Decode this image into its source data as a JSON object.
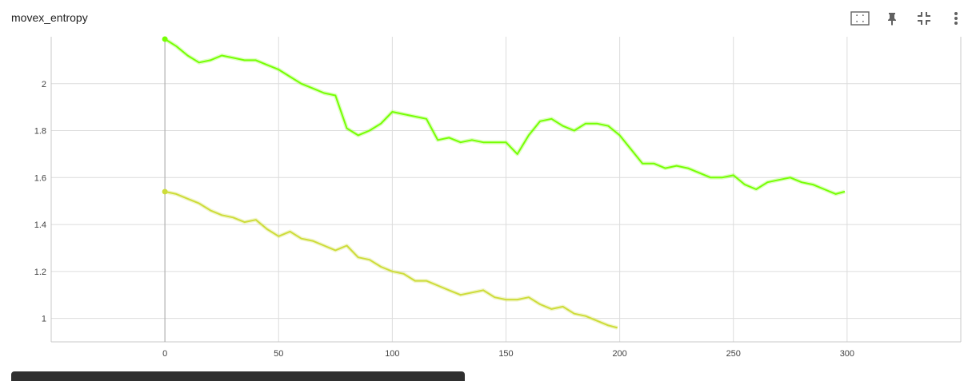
{
  "card": {
    "title": "movex_entropy"
  },
  "toolbar": {
    "icons": [
      "fit-domain-icon",
      "pin-icon",
      "collapse-icon",
      "more-vert-icon"
    ]
  },
  "colors": {
    "series_a": "#76ff03",
    "series_b": "#cddc39",
    "grid": "#dcdcdc",
    "axis_text": "#424242",
    "zero_line": "#b0b0b0"
  },
  "chart_data": {
    "type": "line",
    "title": "movex_entropy",
    "xlabel": "",
    "ylabel": "",
    "xlim": [
      -50,
      350
    ],
    "ylim": [
      0.9,
      2.2
    ],
    "x_ticks": [
      0,
      50,
      100,
      150,
      200,
      250,
      300
    ],
    "y_ticks": [
      1,
      1.2,
      1.4,
      1.6,
      1.8,
      2
    ],
    "x_tick_labels": [
      "0",
      "50",
      "100",
      "150",
      "200",
      "250",
      "300"
    ],
    "y_tick_labels": [
      "1",
      "1.2",
      "1.4",
      "1.6",
      "1.8",
      "2"
    ],
    "grid": true,
    "legend": "none",
    "series": [
      {
        "x": [
          0,
          5,
          10,
          15,
          20,
          25,
          30,
          35,
          40,
          45,
          50,
          55,
          60,
          65,
          70,
          75,
          80,
          85,
          90,
          95,
          100,
          105,
          110,
          115,
          120,
          125,
          130,
          135,
          140,
          145,
          150,
          155,
          160,
          165,
          170,
          175,
          180,
          185,
          190,
          195,
          200,
          205,
          210,
          215,
          220,
          225,
          230,
          235,
          240,
          245,
          250,
          255,
          260,
          265,
          270,
          275,
          280,
          285,
          290,
          295,
          299
        ],
        "values": [
          2.19,
          2.16,
          2.12,
          2.09,
          2.1,
          2.12,
          2.11,
          2.1,
          2.1,
          2.08,
          2.06,
          2.03,
          2.0,
          1.98,
          1.96,
          1.95,
          1.81,
          1.78,
          1.8,
          1.83,
          1.88,
          1.87,
          1.86,
          1.85,
          1.76,
          1.77,
          1.75,
          1.76,
          1.75,
          1.75,
          1.75,
          1.7,
          1.78,
          1.84,
          1.85,
          1.82,
          1.8,
          1.83,
          1.83,
          1.82,
          1.78,
          1.72,
          1.66,
          1.66,
          1.64,
          1.65,
          1.64,
          1.62,
          1.6,
          1.6,
          1.61,
          1.57,
          1.55,
          1.58,
          1.59,
          1.6,
          1.58,
          1.57,
          1.55,
          1.53,
          1.54
        ]
      },
      {
        "x": [
          0,
          5,
          10,
          15,
          20,
          25,
          30,
          35,
          40,
          45,
          50,
          55,
          60,
          65,
          70,
          75,
          80,
          85,
          90,
          95,
          100,
          105,
          110,
          115,
          120,
          125,
          130,
          135,
          140,
          145,
          150,
          155,
          160,
          165,
          170,
          175,
          180,
          185,
          190,
          195,
          199
        ],
        "values": [
          1.54,
          1.53,
          1.51,
          1.49,
          1.46,
          1.44,
          1.43,
          1.41,
          1.42,
          1.38,
          1.35,
          1.37,
          1.34,
          1.33,
          1.31,
          1.29,
          1.31,
          1.26,
          1.25,
          1.22,
          1.2,
          1.19,
          1.16,
          1.16,
          1.14,
          1.12,
          1.1,
          1.11,
          1.12,
          1.09,
          1.08,
          1.08,
          1.09,
          1.06,
          1.04,
          1.05,
          1.02,
          1.01,
          0.99,
          0.97,
          0.96
        ]
      }
    ]
  }
}
